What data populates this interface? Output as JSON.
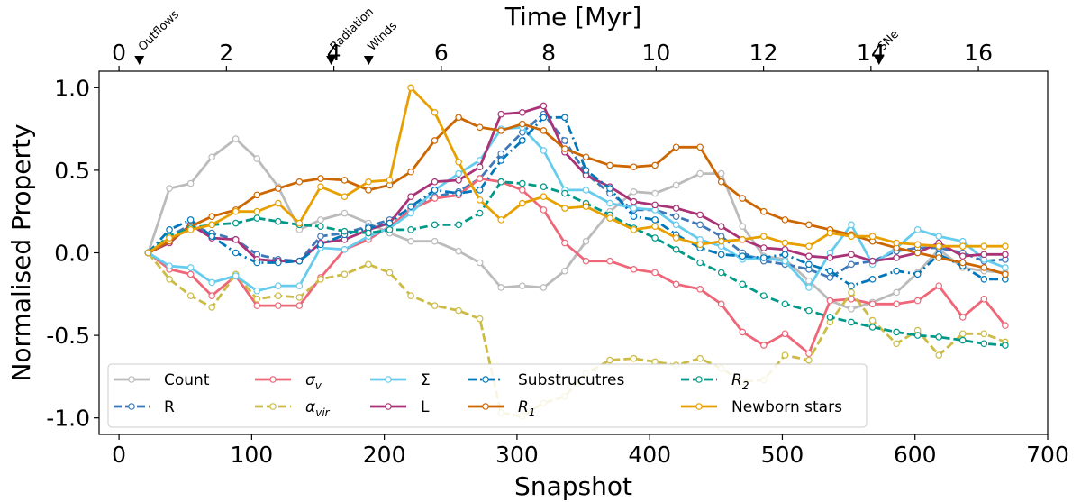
{
  "chart_data": {
    "type": "line",
    "xlabel": "Snapshot",
    "ylabel": "Normalised Property",
    "top_xlabel": "Time [Myr]",
    "xlim": [
      -15,
      700
    ],
    "ylim": [
      -1.1,
      1.1
    ],
    "xticks": [
      0,
      100,
      200,
      300,
      400,
      500,
      600,
      700
    ],
    "xtick_labels": [
      "0",
      "100",
      "200",
      "300",
      "400",
      "500",
      "600",
      "700"
    ],
    "yticks": [
      -1.0,
      -0.5,
      0.0,
      0.5,
      1.0
    ],
    "ytick_labels": [
      "-1.0",
      "-0.5",
      "0.0",
      "0.5",
      "1.0"
    ],
    "top_ticks": [
      0,
      2,
      4,
      6,
      8,
      10,
      12,
      14,
      16
    ],
    "top_tick_labels": [
      "0",
      "2",
      "4",
      "6",
      "8",
      "10",
      "12",
      "14",
      "16"
    ],
    "myr_per_snapshot": 0.0247,
    "events": [
      {
        "label": "Outflows",
        "time_myr": 0.38
      },
      {
        "label": "Radiation",
        "time_myr": 3.95
      },
      {
        "label": "Winds",
        "time_myr": 4.65
      },
      {
        "label": "SNe",
        "time_myr": 14.15
      }
    ],
    "legend": {
      "location": "lower-left",
      "columns": 5
    },
    "series": [
      {
        "name": "Count",
        "color": "#bbbbbb",
        "dash": "solid",
        "x": [
          22,
          38,
          54,
          70,
          88,
          104,
          120,
          136,
          152,
          170,
          188,
          204,
          220,
          238,
          256,
          272,
          288,
          304,
          320,
          336,
          352,
          370,
          388,
          404,
          420,
          438,
          454,
          470,
          486,
          502,
          520,
          536,
          552,
          568,
          586,
          602,
          618,
          636,
          652,
          668
        ],
        "y": [
          0,
          0.39,
          0.42,
          0.58,
          0.69,
          0.57,
          0.4,
          0.14,
          0.2,
          0.24,
          0.18,
          0.12,
          0.07,
          0.07,
          0.01,
          -0.06,
          -0.21,
          -0.2,
          -0.21,
          -0.11,
          0.07,
          0.25,
          0.37,
          0.36,
          0.41,
          0.48,
          0.48,
          0.16,
          -0.02,
          -0.04,
          -0.17,
          -0.29,
          -0.34,
          -0.3,
          -0.24,
          -0.12,
          0.02,
          -0.09,
          -0.11,
          -0.12
        ]
      },
      {
        "name": "R",
        "color": "#3e78b8",
        "dash": "dashed",
        "x": [
          22,
          38,
          54,
          70,
          88,
          104,
          120,
          136,
          152,
          170,
          188,
          204,
          220,
          238,
          256,
          272,
          288,
          304,
          320,
          336,
          352,
          370,
          388,
          404,
          420,
          438,
          454,
          470,
          486,
          502,
          520,
          536,
          552,
          568,
          586,
          602,
          618,
          636,
          652,
          668
        ],
        "y": [
          0,
          0.1,
          0.17,
          0.12,
          0.08,
          -0.01,
          -0.04,
          -0.05,
          0.1,
          0.12,
          0.16,
          0.2,
          0.27,
          0.34,
          0.37,
          0.45,
          0.6,
          0.73,
          0.84,
          0.68,
          0.48,
          0.36,
          0.26,
          0.26,
          0.22,
          0.17,
          0.1,
          0.0,
          -0.05,
          -0.07,
          -0.1,
          -0.15,
          -0.07,
          -0.05,
          0.01,
          0.03,
          0.03,
          0.0,
          -0.05,
          -0.04
        ]
      },
      {
        "name": "σ_v",
        "color": "#ee6677",
        "dash": "solid",
        "x": [
          22,
          38,
          54,
          70,
          88,
          104,
          120,
          136,
          152,
          170,
          188,
          204,
          220,
          238,
          256,
          272,
          288,
          304,
          320,
          336,
          352,
          370,
          388,
          404,
          420,
          438,
          454,
          470,
          486,
          502,
          520,
          536,
          552,
          568,
          586,
          602,
          618,
          636,
          652,
          668
        ],
        "y": [
          0,
          -0.1,
          -0.13,
          -0.26,
          -0.14,
          -0.32,
          -0.32,
          -0.32,
          -0.15,
          0.02,
          0.08,
          0.16,
          0.26,
          0.33,
          0.35,
          0.45,
          0.43,
          0.38,
          0.26,
          0.06,
          -0.05,
          -0.05,
          -0.1,
          -0.12,
          -0.19,
          -0.22,
          -0.31,
          -0.48,
          -0.56,
          -0.49,
          -0.61,
          -0.29,
          -0.28,
          -0.31,
          -0.31,
          -0.29,
          -0.2,
          -0.39,
          -0.28,
          -0.44
        ]
      },
      {
        "name": "α_vir",
        "color": "#ccbb44",
        "dash": "dashed",
        "x": [
          22,
          38,
          54,
          70,
          88,
          104,
          120,
          136,
          152,
          170,
          188,
          204,
          220,
          238,
          256,
          272,
          288,
          304,
          320,
          336,
          352,
          370,
          388,
          404,
          420,
          438,
          454,
          470,
          486,
          502,
          520,
          536,
          552,
          568,
          586,
          602,
          618,
          636,
          652,
          668
        ],
        "y": [
          0,
          -0.16,
          -0.26,
          -0.33,
          -0.13,
          -0.28,
          -0.26,
          -0.27,
          -0.16,
          -0.13,
          -0.07,
          -0.12,
          -0.26,
          -0.32,
          -0.35,
          -0.4,
          -0.97,
          -0.99,
          -0.91,
          -0.87,
          -0.73,
          -0.65,
          -0.64,
          -0.66,
          -0.68,
          -0.64,
          -0.7,
          -0.78,
          -0.77,
          -0.62,
          -0.65,
          -0.42,
          -0.24,
          -0.41,
          -0.55,
          -0.47,
          -0.62,
          -0.49,
          -0.49,
          -0.54
        ]
      },
      {
        "name": "Σ",
        "color": "#66ccee",
        "dash": "solid",
        "x": [
          22,
          38,
          54,
          70,
          88,
          104,
          120,
          136,
          152,
          170,
          188,
          204,
          220,
          238,
          256,
          272,
          288,
          304,
          320,
          336,
          352,
          370,
          388,
          404,
          420,
          438,
          454,
          470,
          486,
          502,
          520,
          536,
          552,
          568,
          586,
          602,
          618,
          636,
          652,
          668
        ],
        "y": [
          0,
          -0.08,
          -0.09,
          -0.18,
          -0.14,
          -0.23,
          -0.2,
          -0.2,
          0.03,
          0.02,
          0.1,
          0.15,
          0.24,
          0.38,
          0.48,
          0.56,
          0.75,
          0.76,
          0.62,
          0.38,
          0.38,
          0.3,
          0.27,
          0.26,
          0.17,
          0.08,
          0.04,
          -0.04,
          -0.03,
          -0.05,
          -0.21,
          0.0,
          0.17,
          -0.07,
          0.03,
          0.14,
          0.1,
          0.07,
          -0.04,
          -0.09
        ]
      },
      {
        "name": "L",
        "color": "#aa3377",
        "dash": "solid",
        "x": [
          22,
          38,
          54,
          70,
          88,
          104,
          120,
          136,
          152,
          170,
          188,
          204,
          220,
          238,
          256,
          272,
          288,
          304,
          320,
          336,
          352,
          370,
          388,
          404,
          420,
          438,
          454,
          470,
          486,
          502,
          520,
          536,
          552,
          568,
          586,
          602,
          618,
          636,
          652,
          668
        ],
        "y": [
          0,
          0.06,
          0.17,
          0.09,
          0.08,
          -0.04,
          -0.05,
          -0.05,
          0.06,
          0.08,
          0.14,
          0.18,
          0.34,
          0.43,
          0.44,
          0.52,
          0.84,
          0.85,
          0.89,
          0.61,
          0.47,
          0.4,
          0.31,
          0.29,
          0.27,
          0.23,
          0.16,
          0.08,
          0.03,
          0.02,
          -0.02,
          -0.03,
          -0.01,
          -0.05,
          -0.03,
          0.0,
          0.06,
          -0.02,
          -0.01,
          -0.01
        ]
      },
      {
        "name": "Substrucutres",
        "color": "#0077bb",
        "dash": "dashdot",
        "x": [
          22,
          38,
          54,
          70,
          88,
          104,
          120,
          136,
          152,
          170,
          188,
          204,
          220,
          238,
          256,
          272,
          288,
          304,
          320,
          336,
          352,
          370,
          388,
          404,
          420,
          438,
          454,
          470,
          486,
          502,
          520,
          536,
          552,
          568,
          586,
          602,
          618,
          636,
          652,
          668
        ],
        "y": [
          0,
          0.14,
          0.2,
          0.1,
          0.0,
          -0.06,
          -0.06,
          -0.05,
          0.05,
          0.11,
          0.15,
          0.18,
          0.28,
          0.38,
          0.36,
          0.38,
          0.56,
          0.68,
          0.82,
          0.82,
          0.5,
          0.39,
          0.22,
          0.2,
          0.11,
          0.03,
          -0.01,
          -0.02,
          -0.03,
          -0.01,
          -0.07,
          -0.11,
          -0.2,
          -0.16,
          -0.11,
          -0.13,
          -0.01,
          -0.08,
          -0.16,
          -0.16
        ]
      },
      {
        "name": "R_1",
        "color": "#cc6600",
        "dash": "solid",
        "x": [
          22,
          38,
          54,
          70,
          88,
          104,
          120,
          136,
          152,
          170,
          188,
          204,
          220,
          238,
          256,
          272,
          288,
          304,
          320,
          336,
          352,
          370,
          388,
          404,
          420,
          438,
          454,
          470,
          486,
          502,
          520,
          536,
          552,
          568,
          586,
          602,
          618,
          636,
          652,
          668
        ],
        "y": [
          0,
          0.07,
          0.16,
          0.22,
          0.26,
          0.35,
          0.39,
          0.43,
          0.45,
          0.44,
          0.38,
          0.41,
          0.49,
          0.68,
          0.82,
          0.76,
          0.74,
          0.78,
          0.74,
          0.63,
          0.58,
          0.53,
          0.52,
          0.53,
          0.64,
          0.64,
          0.43,
          0.33,
          0.25,
          0.2,
          0.17,
          0.14,
          0.11,
          0.07,
          0.03,
          0.0,
          -0.03,
          -0.06,
          -0.09,
          -0.13
        ]
      },
      {
        "name": "R_2",
        "color": "#009988",
        "dash": "dashed",
        "x": [
          22,
          38,
          54,
          70,
          88,
          104,
          120,
          136,
          152,
          170,
          188,
          204,
          220,
          238,
          256,
          272,
          288,
          304,
          320,
          336,
          352,
          370,
          388,
          404,
          420,
          438,
          454,
          470,
          486,
          502,
          520,
          536,
          552,
          568,
          586,
          602,
          618,
          636,
          652,
          668
        ],
        "y": [
          0,
          0.1,
          0.15,
          0.17,
          0.18,
          0.21,
          0.19,
          0.17,
          0.16,
          0.13,
          0.12,
          0.14,
          0.14,
          0.17,
          0.17,
          0.24,
          0.43,
          0.42,
          0.4,
          0.36,
          0.3,
          0.23,
          0.15,
          0.09,
          0.02,
          -0.06,
          -0.12,
          -0.19,
          -0.26,
          -0.31,
          -0.35,
          -0.39,
          -0.42,
          -0.45,
          -0.48,
          -0.5,
          -0.51,
          -0.53,
          -0.55,
          -0.56
        ]
      },
      {
        "name": "Newborn stars",
        "color": "#e8a000",
        "dash": "solid",
        "x": [
          22,
          38,
          54,
          70,
          88,
          104,
          120,
          136,
          152,
          170,
          188,
          204,
          220,
          238,
          256,
          272,
          288,
          304,
          320,
          336,
          352,
          370,
          388,
          404,
          420,
          438,
          454,
          470,
          486,
          502,
          520,
          536,
          552,
          568,
          586,
          602,
          618,
          636,
          652,
          668
        ],
        "y": [
          0,
          0.09,
          0.14,
          0.17,
          0.25,
          0.25,
          0.3,
          0.18,
          0.4,
          0.34,
          0.43,
          0.44,
          1.0,
          0.85,
          0.55,
          0.32,
          0.2,
          0.3,
          0.34,
          0.27,
          0.28,
          0.21,
          0.14,
          0.16,
          0.09,
          0.05,
          0.07,
          0.08,
          0.1,
          0.06,
          0.04,
          0.12,
          0.1,
          0.1,
          0.06,
          0.05,
          0.04,
          0.04,
          0.04,
          0.04
        ]
      }
    ],
    "legend_labels": [
      "Count",
      "R",
      "σ",
      "α",
      "Σ",
      "L",
      "Substrucutres",
      "R",
      "R",
      "Newborn stars"
    ],
    "legend_subscripts": [
      "v",
      "vir",
      "1",
      "2"
    ]
  }
}
